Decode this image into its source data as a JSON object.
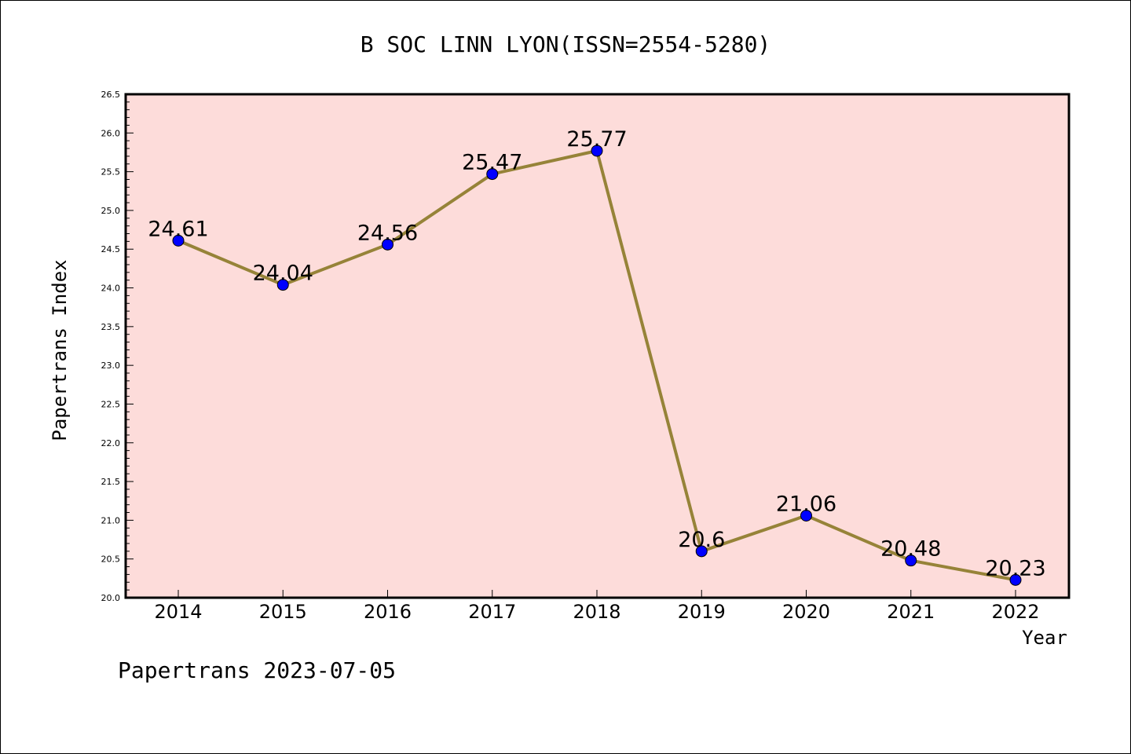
{
  "chart_data": {
    "type": "line",
    "title": "B SOC LINN LYON(ISSN=2554-5280)",
    "xlabel": "Year",
    "ylabel": "Papertrans Index",
    "categories": [
      "2014",
      "2015",
      "2016",
      "2017",
      "2018",
      "2019",
      "2020",
      "2021",
      "2022"
    ],
    "series": [
      {
        "values": [
          24.61,
          24.04,
          24.56,
          25.47,
          25.77,
          20.6,
          21.06,
          20.48,
          20.23
        ]
      }
    ],
    "data_labels": [
      "24.61",
      "24.04",
      "24.56",
      "25.47",
      "25.77",
      "20.6",
      "21.06",
      "20.48",
      "20.23"
    ],
    "ylim": [
      20.0,
      26.5
    ],
    "yticks": [
      "20.0",
      "20.5",
      "21.0",
      "21.5",
      "22.0",
      "22.5",
      "23.0",
      "23.5",
      "24.0",
      "24.5",
      "25.0",
      "25.5",
      "26.0",
      "26.5"
    ],
    "grid": false,
    "colors": {
      "plot_background": "#fddcda",
      "line": "#968338",
      "marker": "#0000ff"
    }
  },
  "footer": "Papertrans 2023-07-05"
}
